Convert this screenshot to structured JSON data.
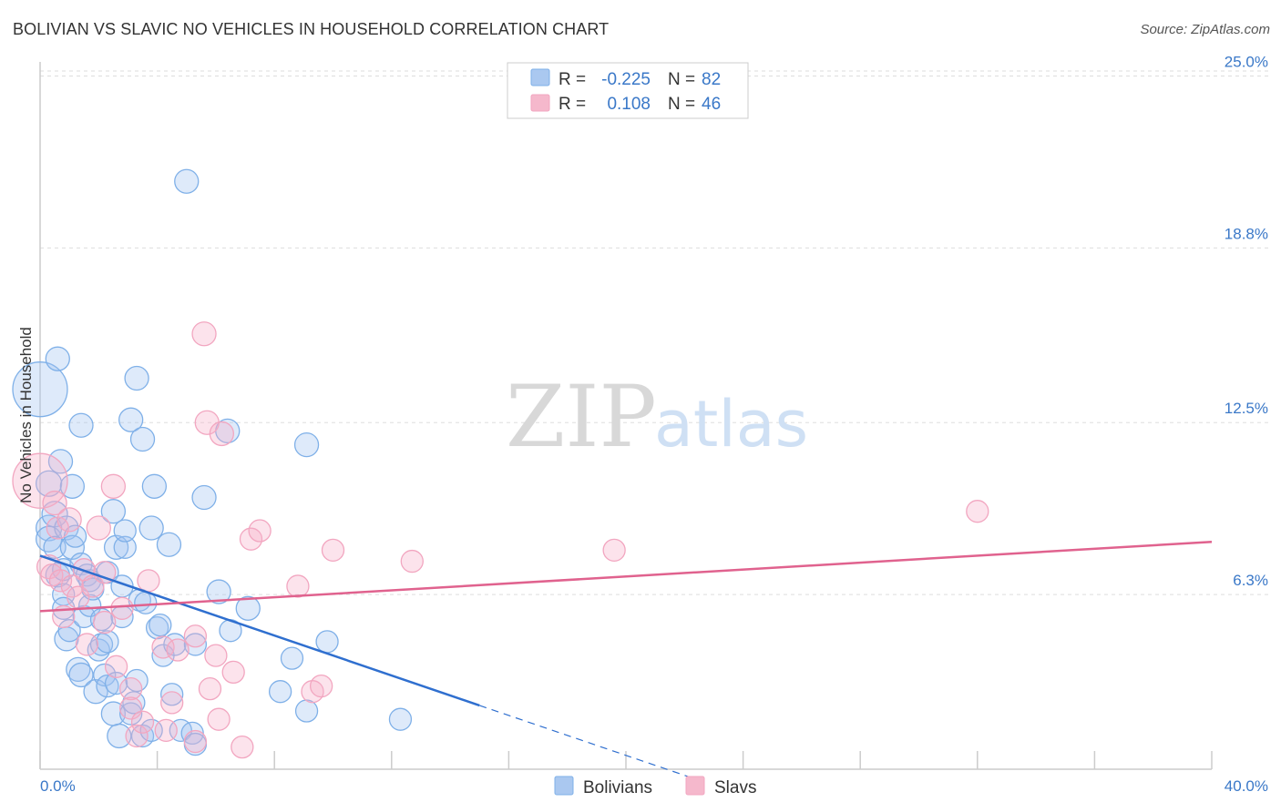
{
  "header": {
    "title": "BOLIVIAN VS SLAVIC NO VEHICLES IN HOUSEHOLD CORRELATION CHART",
    "source": "Source: ZipAtlas.com"
  },
  "watermark": {
    "zip": "ZIP",
    "atlas": "atlas"
  },
  "chart_data": {
    "type": "scatter",
    "title": "BOLIVIAN VS SLAVIC NO VEHICLES IN HOUSEHOLD CORRELATION CHART",
    "xlabel": "",
    "ylabel": "No Vehicles in Household",
    "xlim": [
      0,
      40
    ],
    "ylim": [
      0,
      26
    ],
    "x_tick_labels": [
      "0.0%",
      "40.0%"
    ],
    "y_ticks": [
      6.3,
      12.5,
      18.8,
      25.0
    ],
    "y_tick_labels": [
      "6.3%",
      "12.5%",
      "18.8%",
      "25.0%"
    ],
    "grid": true,
    "legend": {
      "placement": "top-center",
      "rows": [
        {
          "r_label": "R =",
          "r_value": "-0.225",
          "n_label": "N =",
          "n_value": "82",
          "color": "#aac8f0"
        },
        {
          "r_label": "R =",
          "r_value": "0.108",
          "n_label": "N =",
          "n_value": "46",
          "color": "#f5b8cc"
        }
      ]
    },
    "bottom_legend": [
      "Bolivians",
      "Slavs"
    ],
    "series": [
      {
        "name": "Bolivians",
        "color": "#7fb0e8",
        "line_color": "#2f6fcf",
        "trend": {
          "x0": 0,
          "y0": 7.7,
          "x1": 15.0,
          "y1": 2.3,
          "dash_to_x": 22.5
        },
        "points": [
          [
            0.0,
            13.7,
            30
          ],
          [
            0.3,
            10.3,
            14
          ],
          [
            0.3,
            8.7,
            14
          ],
          [
            0.3,
            8.3,
            14
          ],
          [
            0.5,
            9.2,
            14
          ],
          [
            0.5,
            8.0,
            12
          ],
          [
            0.6,
            14.8,
            13
          ],
          [
            0.6,
            7.0,
            13
          ],
          [
            0.7,
            11.1,
            13
          ],
          [
            0.8,
            7.2,
            12
          ],
          [
            0.8,
            6.3,
            12
          ],
          [
            0.8,
            5.8,
            12
          ],
          [
            0.9,
            8.7,
            13
          ],
          [
            0.9,
            4.7,
            13
          ],
          [
            1.0,
            5.0,
            12
          ],
          [
            1.1,
            8.0,
            13
          ],
          [
            1.1,
            10.2,
            13
          ],
          [
            1.2,
            8.4,
            12
          ],
          [
            1.3,
            3.6,
            13
          ],
          [
            1.4,
            12.4,
            13
          ],
          [
            1.4,
            3.4,
            13
          ],
          [
            1.4,
            7.4,
            12
          ],
          [
            1.5,
            5.5,
            12
          ],
          [
            1.6,
            7.0,
            12
          ],
          [
            1.7,
            6.8,
            12
          ],
          [
            1.7,
            5.9,
            12
          ],
          [
            1.8,
            6.5,
            12
          ],
          [
            1.9,
            2.8,
            13
          ],
          [
            2.0,
            4.3,
            12
          ],
          [
            2.1,
            4.5,
            12
          ],
          [
            2.1,
            5.4,
            12
          ],
          [
            2.2,
            3.4,
            12
          ],
          [
            2.3,
            4.6,
            12
          ],
          [
            2.3,
            7.1,
            12
          ],
          [
            2.3,
            3.0,
            12
          ],
          [
            2.5,
            9.3,
            13
          ],
          [
            2.5,
            2.0,
            13
          ],
          [
            2.6,
            8.0,
            13
          ],
          [
            2.6,
            3.1,
            12
          ],
          [
            2.7,
            1.2,
            13
          ],
          [
            2.8,
            6.6,
            12
          ],
          [
            2.8,
            5.5,
            12
          ],
          [
            2.9,
            8.0,
            12
          ],
          [
            2.9,
            8.6,
            12
          ],
          [
            3.1,
            2.0,
            12
          ],
          [
            3.1,
            12.6,
            13
          ],
          [
            3.2,
            2.4,
            12
          ],
          [
            3.3,
            3.2,
            12
          ],
          [
            3.3,
            14.1,
            13
          ],
          [
            3.4,
            6.1,
            12
          ],
          [
            3.5,
            1.2,
            12
          ],
          [
            3.5,
            11.9,
            13
          ],
          [
            3.6,
            6.0,
            12
          ],
          [
            3.8,
            8.7,
            13
          ],
          [
            3.8,
            1.4,
            12
          ],
          [
            3.9,
            10.2,
            13
          ],
          [
            4.0,
            5.1,
            12
          ],
          [
            4.1,
            5.2,
            12
          ],
          [
            4.2,
            4.1,
            12
          ],
          [
            4.4,
            8.1,
            13
          ],
          [
            4.5,
            2.7,
            12
          ],
          [
            4.6,
            4.5,
            12
          ],
          [
            4.8,
            1.4,
            12
          ],
          [
            5.0,
            21.2,
            13
          ],
          [
            5.2,
            1.3,
            12
          ],
          [
            5.3,
            4.5,
            12
          ],
          [
            5.3,
            0.9,
            12
          ],
          [
            5.6,
            9.8,
            13
          ],
          [
            6.1,
            6.4,
            13
          ],
          [
            6.4,
            12.2,
            13
          ],
          [
            6.5,
            5.0,
            12
          ],
          [
            7.1,
            5.8,
            13
          ],
          [
            8.2,
            2.8,
            12
          ],
          [
            8.6,
            4.0,
            12
          ],
          [
            9.1,
            11.7,
            13
          ],
          [
            9.1,
            2.1,
            12
          ],
          [
            9.8,
            4.6,
            12
          ],
          [
            12.3,
            1.8,
            12
          ]
        ]
      },
      {
        "name": "Slavs",
        "color": "#f2a6c0",
        "line_color": "#e0628e",
        "trend": {
          "x0": 0,
          "y0": 5.7,
          "x1": 40.0,
          "y1": 8.2
        },
        "points": [
          [
            0.0,
            10.4,
            30
          ],
          [
            0.3,
            7.3,
            13
          ],
          [
            0.4,
            7.0,
            12
          ],
          [
            0.5,
            9.6,
            13
          ],
          [
            0.6,
            8.7,
            12
          ],
          [
            0.7,
            6.8,
            12
          ],
          [
            0.8,
            5.5,
            12
          ],
          [
            1.0,
            9.0,
            13
          ],
          [
            1.1,
            6.6,
            12
          ],
          [
            1.3,
            6.2,
            12
          ],
          [
            1.5,
            7.2,
            12
          ],
          [
            1.6,
            4.5,
            12
          ],
          [
            1.8,
            6.6,
            12
          ],
          [
            2.0,
            8.7,
            13
          ],
          [
            2.2,
            7.1,
            12
          ],
          [
            2.2,
            5.3,
            12
          ],
          [
            2.5,
            10.2,
            13
          ],
          [
            2.6,
            3.7,
            12
          ],
          [
            2.8,
            5.8,
            12
          ],
          [
            3.1,
            2.9,
            12
          ],
          [
            3.1,
            2.2,
            12
          ],
          [
            3.3,
            1.2,
            12
          ],
          [
            3.5,
            1.7,
            12
          ],
          [
            3.7,
            6.8,
            12
          ],
          [
            4.2,
            4.4,
            12
          ],
          [
            4.3,
            1.4,
            12
          ],
          [
            4.5,
            2.4,
            12
          ],
          [
            4.7,
            4.3,
            12
          ],
          [
            5.3,
            1.0,
            12
          ],
          [
            5.3,
            4.8,
            12
          ],
          [
            5.6,
            15.7,
            13
          ],
          [
            5.7,
            12.5,
            13
          ],
          [
            5.8,
            2.9,
            12
          ],
          [
            6.0,
            4.1,
            12
          ],
          [
            6.1,
            1.8,
            12
          ],
          [
            6.2,
            12.1,
            13
          ],
          [
            6.6,
            3.5,
            12
          ],
          [
            6.9,
            0.8,
            12
          ],
          [
            7.2,
            8.3,
            12
          ],
          [
            7.5,
            8.6,
            12
          ],
          [
            8.8,
            6.6,
            12
          ],
          [
            9.3,
            2.8,
            12
          ],
          [
            9.6,
            3.0,
            12
          ],
          [
            10.0,
            7.9,
            12
          ],
          [
            12.7,
            7.5,
            12
          ],
          [
            19.6,
            7.9,
            12
          ],
          [
            32.0,
            9.3,
            12
          ]
        ]
      }
    ]
  }
}
